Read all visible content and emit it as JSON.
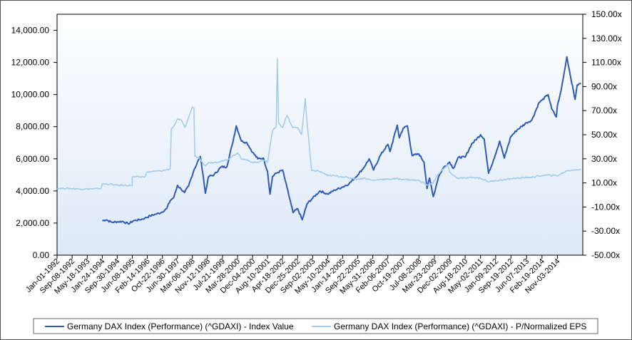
{
  "chart_data": {
    "type": "line",
    "title": "",
    "xlabel": "",
    "ylabel_left": "",
    "ylabel_right": "",
    "y_left": {
      "range": [
        0,
        15000
      ],
      "ticks": [
        0,
        2000,
        4000,
        6000,
        8000,
        10000,
        12000,
        14000
      ],
      "tick_labels": [
        "0.00",
        "2,000.00",
        "4,000.00",
        "6,000.00",
        "8,000.00",
        "10,000.00",
        "12,000.00",
        "14,000.00"
      ]
    },
    "y_right": {
      "range": [
        -50,
        150
      ],
      "ticks": [
        -50,
        -30,
        -10,
        10,
        30,
        50,
        70,
        90,
        110,
        130,
        150
      ],
      "tick_labels": [
        "-50.00x",
        "-30.00x",
        "-10.00x",
        "10.00x",
        "30.00x",
        "50.00x",
        "70.00x",
        "90.00x",
        "110.00x",
        "130.00x",
        "150.00x"
      ]
    },
    "x_range": [
      "1992-01-01",
      "2015-12-31"
    ],
    "x_ticks": [
      {
        "date": "1992-01-01",
        "label": "Jan-01-1992"
      },
      {
        "date": "1992-09-08",
        "label": "Sep-08-1992"
      },
      {
        "date": "1993-05-18",
        "label": "May-18-1993"
      },
      {
        "date": "1994-01-24",
        "label": "Jan-24-1994"
      },
      {
        "date": "1994-09-30",
        "label": "Sep-30-1994"
      },
      {
        "date": "1995-06-08",
        "label": "Jun-08-1995"
      },
      {
        "date": "1996-02-14",
        "label": "Feb-14-1996"
      },
      {
        "date": "1996-10-22",
        "label": "Oct-22-1996"
      },
      {
        "date": "1997-06-30",
        "label": "Jun-30-1997"
      },
      {
        "date": "1998-03-06",
        "label": "Mar-06-1998"
      },
      {
        "date": "1998-11-12",
        "label": "Nov-12-1998"
      },
      {
        "date": "1999-07-21",
        "label": "Jul-21-1999"
      },
      {
        "date": "2000-03-28",
        "label": "Mar-28-2000"
      },
      {
        "date": "2000-12-04",
        "label": "Dec-04-2000"
      },
      {
        "date": "2001-08-10",
        "label": "Aug-10-2001"
      },
      {
        "date": "2002-04-18",
        "label": "Apr-18-2002"
      },
      {
        "date": "2002-12-25",
        "label": "Dec-25-2002"
      },
      {
        "date": "2003-09-02",
        "label": "Sep-02-2003"
      },
      {
        "date": "2004-05-10",
        "label": "May-10-2004"
      },
      {
        "date": "2005-01-14",
        "label": "Jan-14-2005"
      },
      {
        "date": "2005-09-22",
        "label": "Sep-22-2005"
      },
      {
        "date": "2006-05-31",
        "label": "May-31-2006"
      },
      {
        "date": "2007-02-06",
        "label": "Feb-06-2007"
      },
      {
        "date": "2007-10-19",
        "label": "Oct-19-2007"
      },
      {
        "date": "2008-07-08",
        "label": "Jul-08-2008"
      },
      {
        "date": "2009-03-23",
        "label": "Mar-23-2009"
      },
      {
        "date": "2009-12-02",
        "label": "Dec-02-2009"
      },
      {
        "date": "2010-08-18",
        "label": "Aug-18-2010"
      },
      {
        "date": "2011-05-02",
        "label": "May-02-2011"
      },
      {
        "date": "2012-01-09",
        "label": "Jan-09-2012"
      },
      {
        "date": "2012-09-19",
        "label": "Sep-19-2012"
      },
      {
        "date": "2013-06-07",
        "label": "Jun-07-2013"
      },
      {
        "date": "2014-02-19",
        "label": "Feb-19-2014"
      },
      {
        "date": "2014-11-03",
        "label": "Nov-03-2014"
      }
    ],
    "grid": false,
    "legend_position": "bottom",
    "series": [
      {
        "name": "Germany DAX Index (Performance) (^GDAXI) - Index Value",
        "axis": "left",
        "color": "#2e5bb8",
        "points": [
          [
            "1994-01-24",
            2150
          ],
          [
            "1994-04-01",
            2200
          ],
          [
            "1994-07-01",
            2050
          ],
          [
            "1994-10-01",
            2080
          ],
          [
            "1995-01-01",
            2100
          ],
          [
            "1995-04-01",
            1950
          ],
          [
            "1995-07-01",
            2150
          ],
          [
            "1995-10-01",
            2200
          ],
          [
            "1996-01-01",
            2300
          ],
          [
            "1996-04-01",
            2450
          ],
          [
            "1996-07-01",
            2550
          ],
          [
            "1996-10-01",
            2650
          ],
          [
            "1997-01-01",
            2900
          ],
          [
            "1997-03-01",
            3400
          ],
          [
            "1997-05-01",
            3600
          ],
          [
            "1997-07-01",
            4350
          ],
          [
            "1997-09-01",
            4100
          ],
          [
            "1997-10-28",
            3900
          ],
          [
            "1998-01-01",
            4300
          ],
          [
            "1998-04-01",
            5300
          ],
          [
            "1998-07-15",
            6150
          ],
          [
            "1998-09-01",
            5000
          ],
          [
            "1998-10-08",
            3850
          ],
          [
            "1998-12-01",
            4900
          ],
          [
            "1999-03-01",
            5000
          ],
          [
            "1999-07-01",
            5500
          ],
          [
            "1999-10-01",
            5500
          ],
          [
            "2000-01-01",
            6900
          ],
          [
            "2000-03-07",
            8050
          ],
          [
            "2000-06-01",
            7100
          ],
          [
            "2000-09-01",
            7000
          ],
          [
            "2000-12-04",
            6400
          ],
          [
            "2001-03-01",
            6000
          ],
          [
            "2001-06-01",
            6050
          ],
          [
            "2001-08-10",
            5200
          ],
          [
            "2001-09-21",
            3800
          ],
          [
            "2001-11-01",
            4900
          ],
          [
            "2002-01-01",
            5100
          ],
          [
            "2002-04-18",
            5300
          ],
          [
            "2002-07-01",
            4200
          ],
          [
            "2002-10-09",
            2650
          ],
          [
            "2002-12-25",
            2900
          ],
          [
            "2003-03-12",
            2200
          ],
          [
            "2003-06-01",
            3200
          ],
          [
            "2003-09-02",
            3550
          ],
          [
            "2004-01-01",
            4000
          ],
          [
            "2004-05-10",
            3800
          ],
          [
            "2004-09-01",
            4050
          ],
          [
            "2005-01-14",
            4250
          ],
          [
            "2005-05-01",
            4450
          ],
          [
            "2005-09-22",
            5000
          ],
          [
            "2006-01-01",
            5450
          ],
          [
            "2006-04-01",
            6000
          ],
          [
            "2006-06-13",
            5300
          ],
          [
            "2006-10-01",
            6200
          ],
          [
            "2007-02-06",
            6900
          ],
          [
            "2007-03-14",
            6450
          ],
          [
            "2007-07-13",
            8100
          ],
          [
            "2007-08-16",
            7300
          ],
          [
            "2007-10-19",
            7900
          ],
          [
            "2007-12-28",
            8050
          ],
          [
            "2008-03-17",
            6200
          ],
          [
            "2008-07-08",
            6300
          ],
          [
            "2008-10-01",
            5800
          ],
          [
            "2008-11-21",
            4150
          ],
          [
            "2009-01-01",
            4800
          ],
          [
            "2009-03-06",
            3650
          ],
          [
            "2009-06-01",
            4900
          ],
          [
            "2009-09-01",
            5500
          ],
          [
            "2009-12-02",
            5800
          ],
          [
            "2010-02-01",
            5400
          ],
          [
            "2010-05-01",
            6100
          ],
          [
            "2010-08-18",
            6100
          ],
          [
            "2010-12-01",
            6900
          ],
          [
            "2011-05-02",
            7500
          ],
          [
            "2011-07-01",
            7250
          ],
          [
            "2011-09-12",
            5100
          ],
          [
            "2011-12-01",
            5900
          ],
          [
            "2012-03-16",
            7100
          ],
          [
            "2012-06-01",
            6050
          ],
          [
            "2012-09-19",
            7400
          ],
          [
            "2013-01-01",
            7800
          ],
          [
            "2013-06-07",
            8250
          ],
          [
            "2013-09-01",
            8400
          ],
          [
            "2014-01-01",
            9500
          ],
          [
            "2014-02-19",
            9650
          ],
          [
            "2014-06-01",
            10000
          ],
          [
            "2014-08-01",
            9100
          ],
          [
            "2014-10-16",
            8600
          ],
          [
            "2014-11-03",
            9300
          ],
          [
            "2015-01-01",
            10200
          ],
          [
            "2015-04-10",
            12350
          ],
          [
            "2015-06-01",
            11300
          ],
          [
            "2015-08-24",
            9700
          ],
          [
            "2015-10-01",
            10600
          ],
          [
            "2015-12-01",
            10700
          ]
        ]
      },
      {
        "name": "Germany DAX Index (Performance) (^GDAXI) - P/Normalized EPS",
        "axis": "right",
        "color": "#9fcbef",
        "points": [
          [
            "1992-01-01",
            5.5
          ],
          [
            "1992-06-01",
            5.5
          ],
          [
            "1993-01-01",
            5.0
          ],
          [
            "1993-09-01",
            5.0
          ],
          [
            "1994-01-01",
            5.5
          ],
          [
            "1994-01-24",
            9.0
          ],
          [
            "1994-06-01",
            9.0
          ],
          [
            "1994-09-30",
            8.0
          ],
          [
            "1995-01-01",
            8.0
          ],
          [
            "1995-06-07",
            8.0
          ],
          [
            "1995-06-08",
            15.0
          ],
          [
            "1996-01-01",
            15.0
          ],
          [
            "1996-02-14",
            19.0
          ],
          [
            "1996-06-01",
            19.5
          ],
          [
            "1996-10-22",
            20.0
          ],
          [
            "1997-01-01",
            21.0
          ],
          [
            "1997-03-01",
            21.5
          ],
          [
            "1997-03-20",
            55.0
          ],
          [
            "1997-05-01",
            57.0
          ],
          [
            "1997-07-01",
            63.0
          ],
          [
            "1997-09-01",
            62.0
          ],
          [
            "1997-11-01",
            56.0
          ],
          [
            "1998-01-01",
            64.0
          ],
          [
            "1998-03-06",
            73.0
          ],
          [
            "1998-04-01",
            72.0
          ],
          [
            "1998-04-15",
            32.0
          ],
          [
            "1998-07-01",
            31.0
          ],
          [
            "1998-10-08",
            24.0
          ],
          [
            "1998-12-01",
            27.0
          ],
          [
            "1999-03-01",
            27.0
          ],
          [
            "1999-07-21",
            28.0
          ],
          [
            "1999-10-01",
            29.0
          ],
          [
            "2000-03-28",
            35.0
          ],
          [
            "2000-06-01",
            30.0
          ],
          [
            "2000-09-01",
            29.0
          ],
          [
            "2000-12-04",
            27.0
          ],
          [
            "2001-03-01",
            27.0
          ],
          [
            "2001-06-01",
            29.0
          ],
          [
            "2001-08-10",
            27.0
          ],
          [
            "2001-09-21",
            41.0
          ],
          [
            "2001-11-01",
            53.0
          ],
          [
            "2002-01-01",
            57.0
          ],
          [
            "2002-01-20",
            113.0
          ],
          [
            "2002-02-10",
            60.0
          ],
          [
            "2002-04-18",
            56.0
          ],
          [
            "2002-07-01",
            66.0
          ],
          [
            "2002-10-01",
            56.0
          ],
          [
            "2002-12-25",
            56.0
          ],
          [
            "2003-03-01",
            50.0
          ],
          [
            "2003-05-01",
            80.0
          ],
          [
            "2003-06-01",
            60.0
          ],
          [
            "2003-08-15",
            20.0
          ],
          [
            "2003-12-01",
            20.0
          ],
          [
            "2004-03-01",
            18.0
          ],
          [
            "2004-05-10",
            16.0
          ],
          [
            "2004-09-01",
            16.0
          ],
          [
            "2005-01-14",
            15.0
          ],
          [
            "2005-06-01",
            14.0
          ],
          [
            "2005-09-22",
            13.0
          ],
          [
            "2006-01-01",
            14.0
          ],
          [
            "2006-05-31",
            12.0
          ],
          [
            "2006-10-01",
            13.0
          ],
          [
            "2007-02-06",
            13.0
          ],
          [
            "2007-07-01",
            13.5
          ],
          [
            "2007-10-19",
            13.0
          ],
          [
            "2008-03-01",
            12.5
          ],
          [
            "2008-07-08",
            12.0
          ],
          [
            "2008-10-01",
            10.0
          ],
          [
            "2008-11-21",
            8.0
          ],
          [
            "2009-03-06",
            10.0
          ],
          [
            "2009-05-01",
            16.0
          ],
          [
            "2009-09-01",
            22.0
          ],
          [
            "2009-11-01",
            25.0
          ],
          [
            "2009-12-02",
            19.0
          ],
          [
            "2010-04-01",
            14.0
          ],
          [
            "2010-08-18",
            14.0
          ],
          [
            "2011-01-01",
            14.5
          ],
          [
            "2011-05-02",
            14.0
          ],
          [
            "2011-09-12",
            11.0
          ],
          [
            "2012-01-09",
            12.0
          ],
          [
            "2012-06-01",
            12.5
          ],
          [
            "2012-09-19",
            13.5
          ],
          [
            "2013-01-01",
            14.0
          ],
          [
            "2013-06-07",
            14.5
          ],
          [
            "2013-10-01",
            15.0
          ],
          [
            "2014-02-19",
            16.0
          ],
          [
            "2014-06-01",
            16.5
          ],
          [
            "2014-11-03",
            16.0
          ],
          [
            "2015-04-10",
            20.0
          ],
          [
            "2015-08-24",
            21.0
          ],
          [
            "2015-12-01",
            21.0
          ]
        ]
      }
    ]
  }
}
